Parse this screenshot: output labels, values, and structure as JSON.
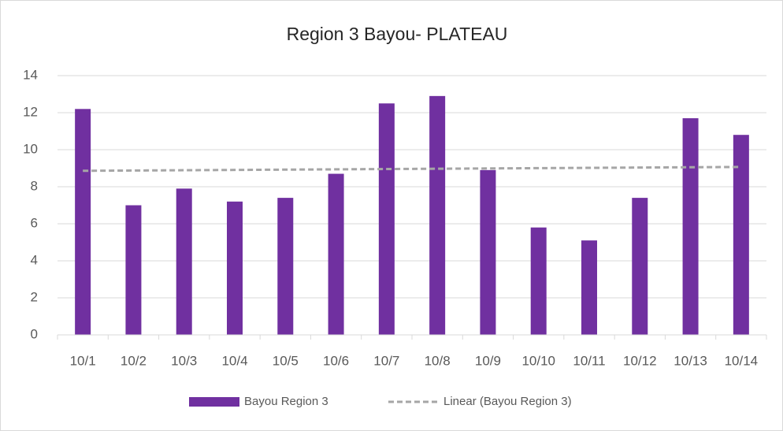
{
  "chart_data": {
    "type": "bar",
    "title": "Region 3 Bayou- PLATEAU",
    "categories": [
      "10/1",
      "10/2",
      "10/3",
      "10/4",
      "10/5",
      "10/6",
      "10/7",
      "10/8",
      "10/9",
      "10/10",
      "10/11",
      "10/12",
      "10/13",
      "10/14"
    ],
    "series": [
      {
        "name": "Bayou Region 3",
        "color": "#7030a0",
        "values": [
          12.2,
          7.0,
          7.9,
          7.2,
          7.4,
          8.7,
          12.5,
          12.9,
          8.9,
          5.8,
          5.1,
          7.4,
          11.7,
          10.8
        ]
      }
    ],
    "trendline": {
      "name": "Linear (Bayou Region 3)",
      "color": "#a6a6a6"
    },
    "ylim": [
      0,
      14
    ],
    "yticks": [
      0,
      2,
      4,
      6,
      8,
      10,
      12,
      14
    ],
    "grid": true,
    "legend": "bottom"
  }
}
